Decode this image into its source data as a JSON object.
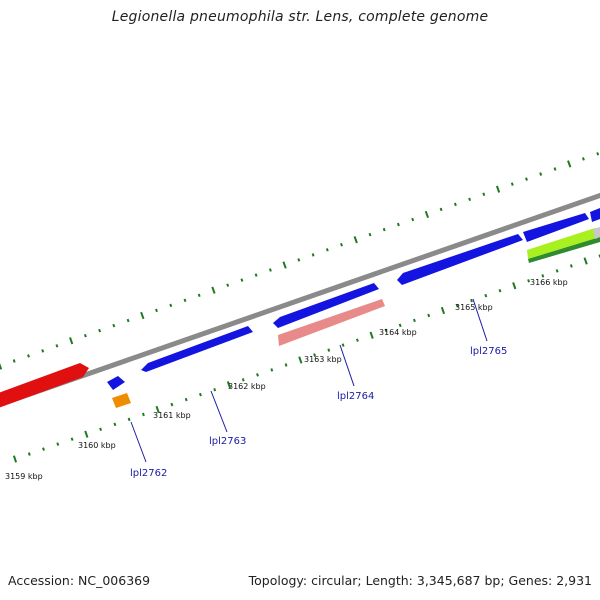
{
  "title": "Legionella pneumophila str. Lens, complete genome",
  "colors": {
    "backbone": "#808080",
    "tick": "#1f7a1f",
    "label": "#1a1aa8",
    "gene_blue": "#1010e0",
    "gene_red": "#e01010",
    "gene_pink": "#e88a8a",
    "gene_orange": "#f08c00",
    "gene_lime": "#a8f020",
    "gene_green": "#2e8b2e",
    "gene_gray": "#c8c8c8"
  },
  "scale": {
    "unit": "kbp",
    "labels": [
      {
        "text": "3159 kbp"
      },
      {
        "text": "3160 kbp"
      },
      {
        "text": "3161 kbp"
      },
      {
        "text": "3162 kbp"
      },
      {
        "text": "3163 kbp"
      },
      {
        "text": "3164 kbp"
      },
      {
        "text": "3165 kbp"
      },
      {
        "text": "3166 kbp"
      }
    ]
  },
  "genes": [
    {
      "label": "lpl2762"
    },
    {
      "label": "lpl2763"
    },
    {
      "label": "lpl2764"
    },
    {
      "label": "lpl2765"
    }
  ],
  "footer": {
    "accession": "Accession: NC_006369",
    "summary": "Topology: circular; Length: 3,345,687 bp; Genes: 2,931"
  }
}
